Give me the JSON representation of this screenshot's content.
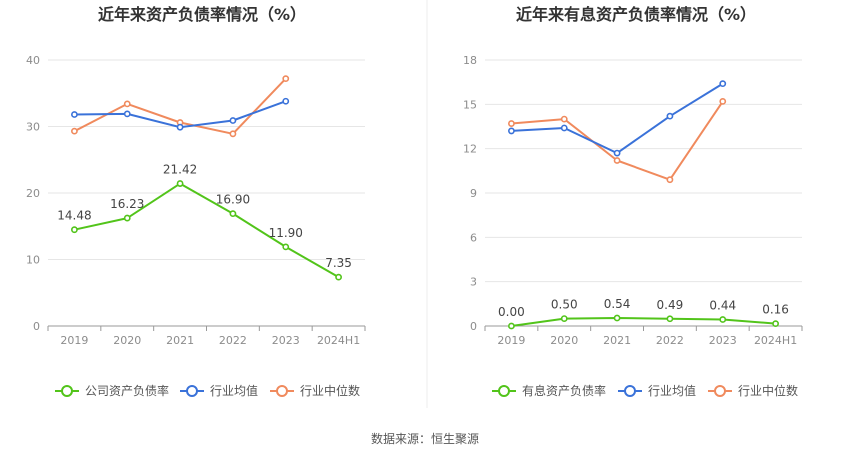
{
  "source": "数据来源：恒生聚源",
  "colors": {
    "company": "#52c41a",
    "industry_avg": "#3a72d9",
    "industry_median": "#f08a5d",
    "grid": "#e6e6e6",
    "axis": "#999999"
  },
  "chart_data": [
    {
      "type": "line",
      "title": "近年来资产负债率情况（%）",
      "categories": [
        "2019",
        "2020",
        "2021",
        "2022",
        "2023",
        "2024H1"
      ],
      "ylim": [
        0,
        40
      ],
      "yticks": [
        0,
        10,
        20,
        30,
        40
      ],
      "grid": true,
      "legend_position": "bottom",
      "series": [
        {
          "name": "公司资产负债率",
          "color": "#52c41a",
          "values": [
            14.48,
            16.23,
            21.42,
            16.9,
            11.9,
            7.35
          ],
          "labels": [
            "14.48",
            "16.23",
            "21.42",
            "16.90",
            "11.90",
            "7.35"
          ]
        },
        {
          "name": "行业均值",
          "color": "#3a72d9",
          "values": [
            31.8,
            31.9,
            29.9,
            30.9,
            33.8,
            null
          ]
        },
        {
          "name": "行业中位数",
          "color": "#f08a5d",
          "values": [
            29.3,
            33.4,
            30.6,
            28.9,
            37.2,
            null
          ]
        }
      ]
    },
    {
      "type": "line",
      "title": "近年来有息资产负债率情况（%）",
      "categories": [
        "2019",
        "2020",
        "2021",
        "2022",
        "2023",
        "2024H1"
      ],
      "ylim": [
        0,
        18
      ],
      "yticks": [
        0,
        3,
        6,
        9,
        12,
        15,
        18
      ],
      "grid": true,
      "legend_position": "bottom",
      "series": [
        {
          "name": "有息资产负债率",
          "color": "#52c41a",
          "values": [
            0.0,
            0.5,
            0.54,
            0.49,
            0.44,
            0.16
          ],
          "labels": [
            "0.00",
            "0.50",
            "0.54",
            "0.49",
            "0.44",
            "0.16"
          ]
        },
        {
          "name": "行业均值",
          "color": "#3a72d9",
          "values": [
            13.2,
            13.4,
            11.7,
            14.2,
            16.4,
            null
          ]
        },
        {
          "name": "行业中位数",
          "color": "#f08a5d",
          "values": [
            13.7,
            14.0,
            11.2,
            9.9,
            15.2,
            null
          ]
        }
      ]
    }
  ]
}
